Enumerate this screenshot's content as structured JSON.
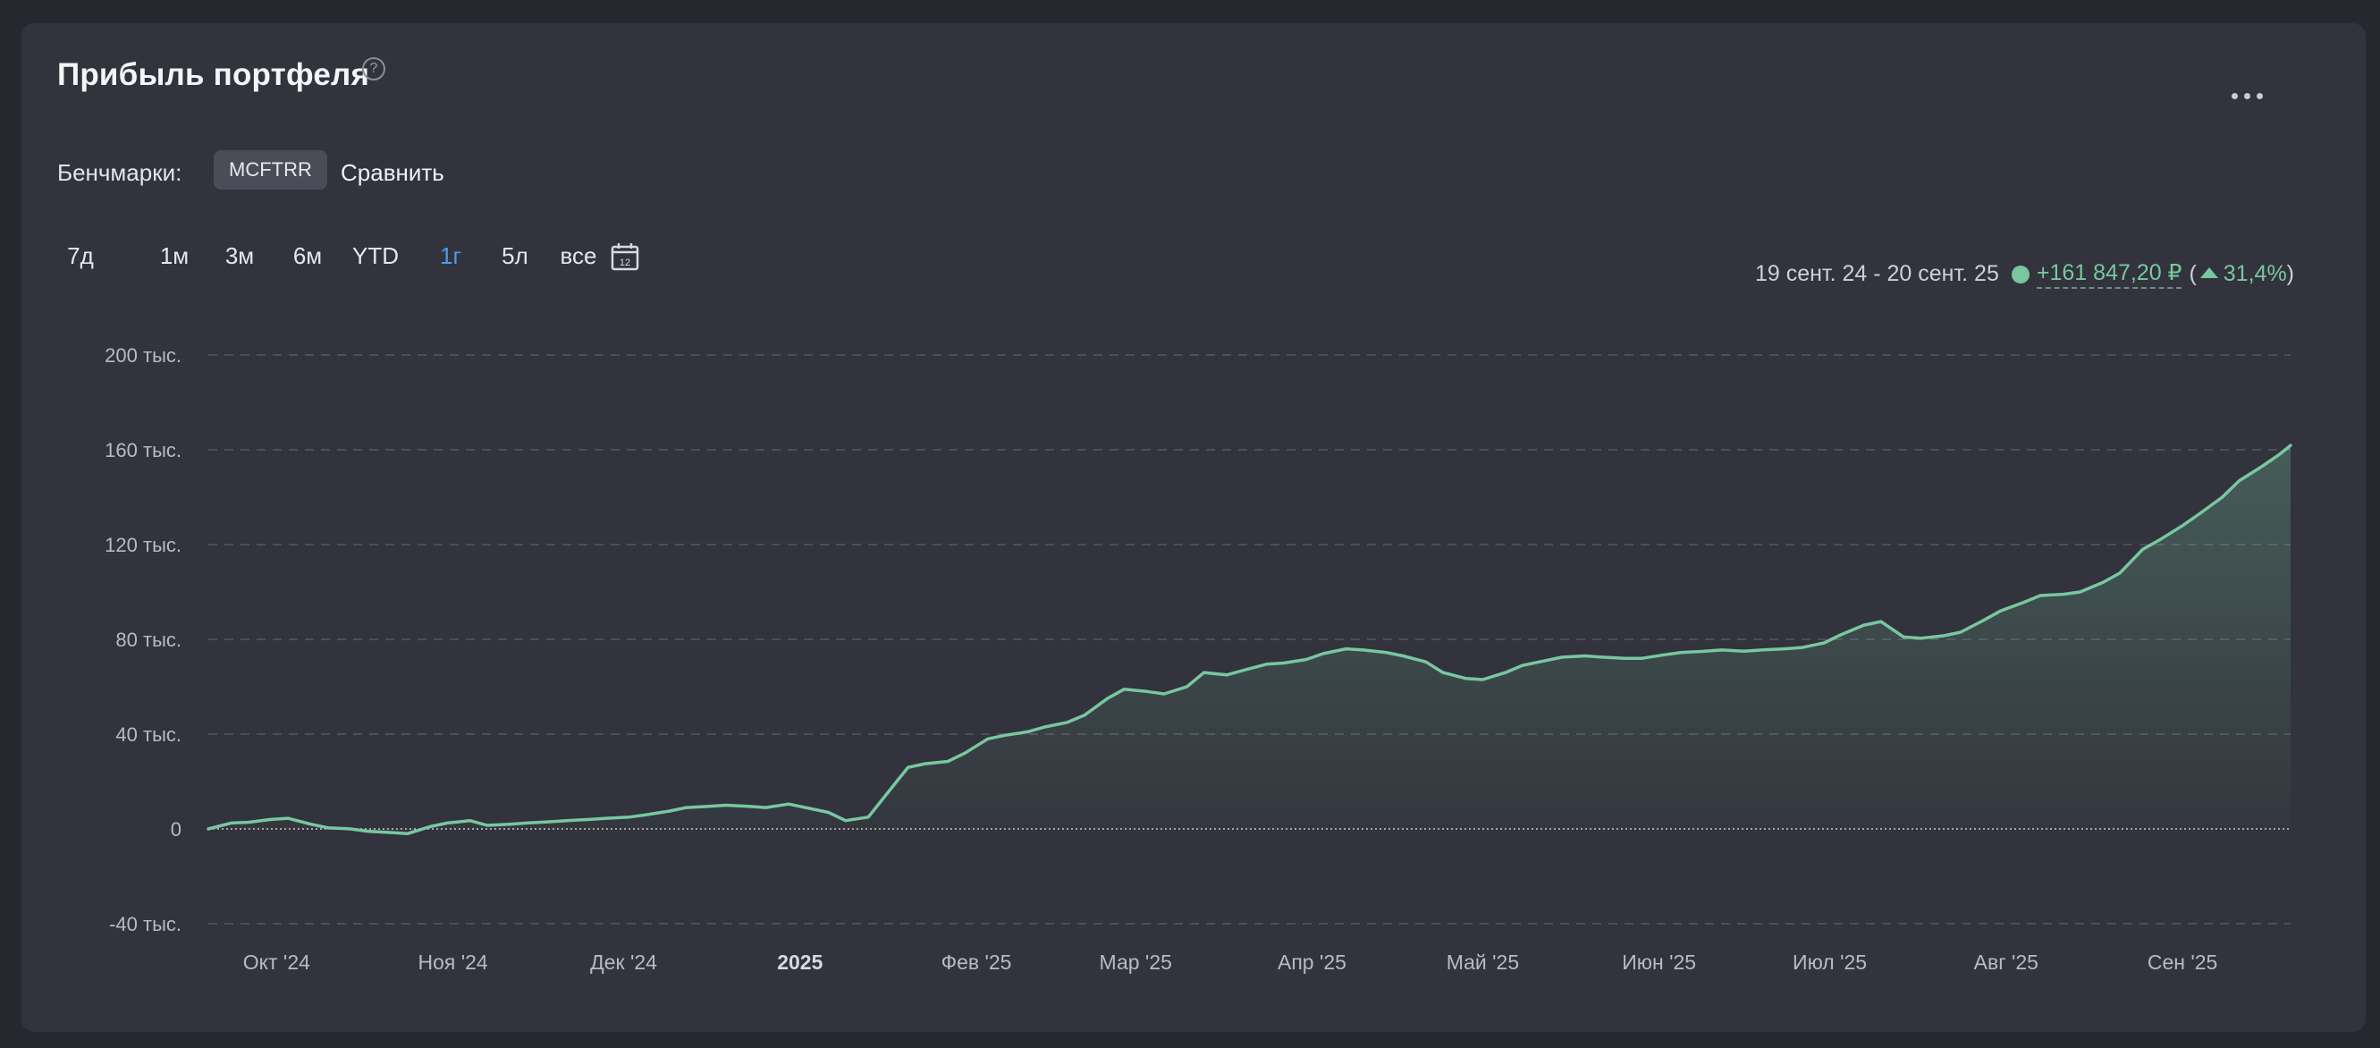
{
  "title": "Прибыль портфеля",
  "help_icon": "?",
  "benchmarks": {
    "label": "Бенчмарки:",
    "chip": "MCFTRR",
    "compare": "Сравнить"
  },
  "periods": [
    "7д",
    "1м",
    "3м",
    "6м",
    "YTD",
    "1г",
    "5л",
    "все"
  ],
  "active_period": "1г",
  "summary": {
    "range": "19 сент. 24 - 20 сент. 25",
    "gain": "+161 847,20 ₽",
    "pct": "31,4%",
    "open": "(",
    "close": ")"
  },
  "colors": {
    "accent": "#78c7a0",
    "active_period": "#4a9cf0",
    "background": "#32333c"
  },
  "chart_data": {
    "type": "area",
    "title": "",
    "ylim": [
      -40000,
      200000
    ],
    "y_ticks": [
      -40000,
      0,
      40000,
      80000,
      120000,
      160000,
      200000
    ],
    "y_tick_labels": [
      "-40 тыс.",
      "0",
      "40 тыс.",
      "80 тыс.",
      "120 тыс.",
      "160 тыс.",
      "200 тыс."
    ],
    "grid": true,
    "x_range": [
      "2024-09-19",
      "2025-09-20"
    ],
    "x_ticks": [
      {
        "date": "2024-10-01",
        "label": "Окт '24"
      },
      {
        "date": "2024-11-01",
        "label": "Ноя '24"
      },
      {
        "date": "2024-12-01",
        "label": "Дек '24"
      },
      {
        "date": "2025-01-01",
        "label": "2025",
        "bold": true
      },
      {
        "date": "2025-02-01",
        "label": "Фев '25"
      },
      {
        "date": "2025-03-01",
        "label": "Мар '25"
      },
      {
        "date": "2025-04-01",
        "label": "Апр '25"
      },
      {
        "date": "2025-05-01",
        "label": "Май '25"
      },
      {
        "date": "2025-06-01",
        "label": "Июн '25"
      },
      {
        "date": "2025-07-01",
        "label": "Июл '25"
      },
      {
        "date": "2025-08-01",
        "label": "Авг '25"
      },
      {
        "date": "2025-09-01",
        "label": "Сен '25"
      }
    ],
    "series": [
      {
        "points": [
          [
            "2024-09-19",
            0
          ],
          [
            "2024-09-23",
            2500
          ],
          [
            "2024-09-26",
            2800
          ],
          [
            "2024-09-30",
            4000
          ],
          [
            "2024-10-03",
            4500
          ],
          [
            "2024-10-07",
            2000
          ],
          [
            "2024-10-10",
            500
          ],
          [
            "2024-10-14",
            0
          ],
          [
            "2024-10-17",
            -1000
          ],
          [
            "2024-10-21",
            -1500
          ],
          [
            "2024-10-24",
            -2000
          ],
          [
            "2024-10-28",
            1000
          ],
          [
            "2024-10-31",
            2500
          ],
          [
            "2024-11-04",
            3500
          ],
          [
            "2024-11-07",
            1500
          ],
          [
            "2024-11-11",
            2000
          ],
          [
            "2024-11-14",
            2500
          ],
          [
            "2024-11-18",
            3000
          ],
          [
            "2024-11-21",
            3500
          ],
          [
            "2024-11-25",
            4000
          ],
          [
            "2024-11-28",
            4500
          ],
          [
            "2024-12-02",
            5000
          ],
          [
            "2024-12-05",
            6000
          ],
          [
            "2024-12-09",
            7500
          ],
          [
            "2024-12-12",
            9000
          ],
          [
            "2024-12-16",
            9500
          ],
          [
            "2024-12-19",
            10000
          ],
          [
            "2024-12-23",
            9500
          ],
          [
            "2024-12-26",
            9000
          ],
          [
            "2024-12-30",
            10500
          ],
          [
            "2025-01-03",
            8500
          ],
          [
            "2025-01-06",
            7000
          ],
          [
            "2025-01-09",
            3500
          ],
          [
            "2025-01-13",
            5000
          ],
          [
            "2025-01-16",
            14000
          ],
          [
            "2025-01-20",
            26000
          ],
          [
            "2025-01-23",
            27500
          ],
          [
            "2025-01-27",
            28500
          ],
          [
            "2025-01-30",
            32000
          ],
          [
            "2025-02-03",
            38000
          ],
          [
            "2025-02-06",
            39500
          ],
          [
            "2025-02-10",
            41000
          ],
          [
            "2025-02-13",
            43000
          ],
          [
            "2025-02-17",
            45000
          ],
          [
            "2025-02-20",
            48000
          ],
          [
            "2025-02-24",
            55000
          ],
          [
            "2025-02-27",
            59000
          ],
          [
            "2025-03-03",
            58000
          ],
          [
            "2025-03-06",
            57000
          ],
          [
            "2025-03-10",
            60000
          ],
          [
            "2025-03-13",
            66000
          ],
          [
            "2025-03-17",
            65000
          ],
          [
            "2025-03-20",
            67000
          ],
          [
            "2025-03-24",
            69500
          ],
          [
            "2025-03-27",
            70000
          ],
          [
            "2025-03-31",
            71500
          ],
          [
            "2025-04-03",
            74000
          ],
          [
            "2025-04-07",
            76000
          ],
          [
            "2025-04-10",
            75500
          ],
          [
            "2025-04-14",
            74500
          ],
          [
            "2025-04-17",
            73000
          ],
          [
            "2025-04-21",
            70500
          ],
          [
            "2025-04-24",
            66000
          ],
          [
            "2025-04-28",
            63500
          ],
          [
            "2025-05-01",
            63000
          ],
          [
            "2025-05-05",
            66000
          ],
          [
            "2025-05-08",
            69000
          ],
          [
            "2025-05-12",
            71000
          ],
          [
            "2025-05-15",
            72500
          ],
          [
            "2025-05-19",
            73000
          ],
          [
            "2025-05-22",
            72500
          ],
          [
            "2025-05-26",
            72000
          ],
          [
            "2025-05-29",
            72000
          ],
          [
            "2025-06-02",
            73500
          ],
          [
            "2025-06-05",
            74500
          ],
          [
            "2025-06-09",
            75000
          ],
          [
            "2025-06-12",
            75500
          ],
          [
            "2025-06-16",
            75000
          ],
          [
            "2025-06-19",
            75500
          ],
          [
            "2025-06-23",
            76000
          ],
          [
            "2025-06-26",
            76500
          ],
          [
            "2025-06-30",
            78500
          ],
          [
            "2025-07-03",
            82000
          ],
          [
            "2025-07-07",
            86000
          ],
          [
            "2025-07-10",
            87500
          ],
          [
            "2025-07-14",
            81000
          ],
          [
            "2025-07-17",
            80500
          ],
          [
            "2025-07-21",
            81500
          ],
          [
            "2025-07-24",
            83000
          ],
          [
            "2025-07-28",
            88000
          ],
          [
            "2025-07-31",
            92000
          ],
          [
            "2025-08-04",
            95500
          ],
          [
            "2025-08-07",
            98500
          ],
          [
            "2025-08-11",
            99000
          ],
          [
            "2025-08-14",
            100000
          ],
          [
            "2025-08-18",
            104000
          ],
          [
            "2025-08-21",
            108000
          ],
          [
            "2025-08-25",
            118000
          ],
          [
            "2025-08-28",
            122000
          ],
          [
            "2025-09-01",
            128000
          ],
          [
            "2025-09-04",
            133000
          ],
          [
            "2025-09-08",
            140000
          ],
          [
            "2025-09-11",
            147000
          ],
          [
            "2025-09-15",
            153000
          ],
          [
            "2025-09-18",
            158000
          ],
          [
            "2025-09-20",
            161847
          ]
        ]
      }
    ]
  }
}
